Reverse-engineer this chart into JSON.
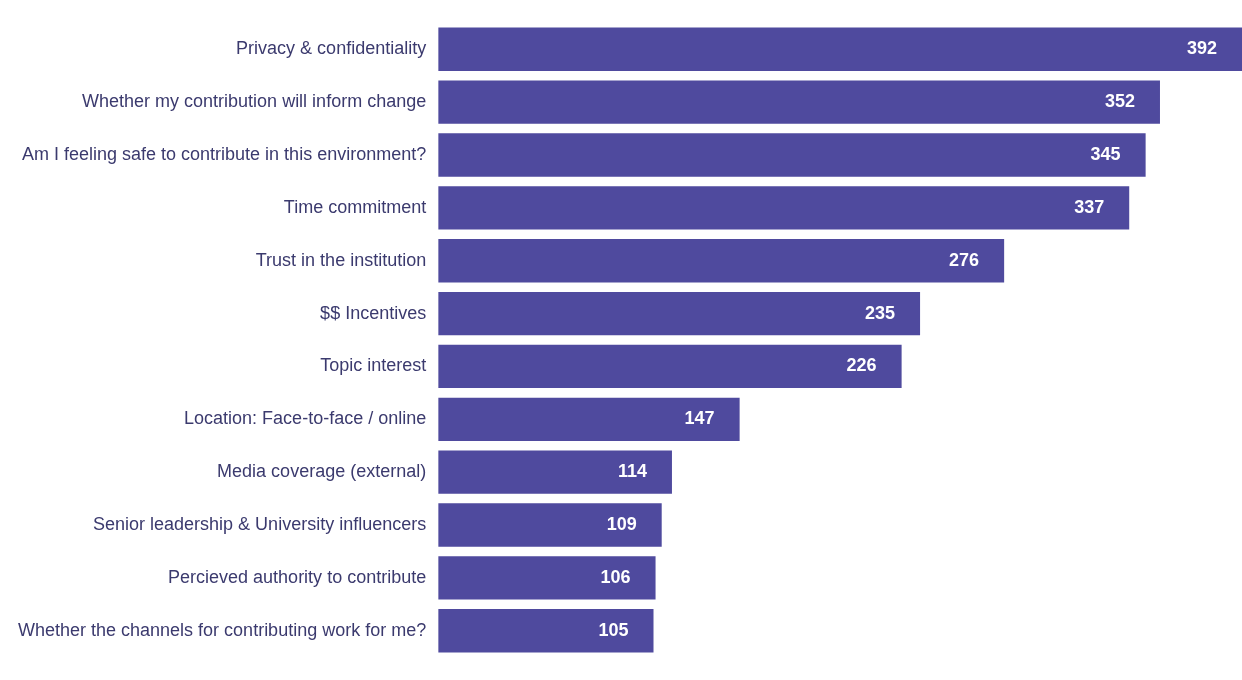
{
  "chart_data": {
    "type": "bar",
    "orientation": "horizontal",
    "categories": [
      "Privacy & confidentiality",
      "Whether my contribution will inform change",
      "Am I feeling safe to contribute in this environment?",
      "Time commitment",
      "Trust in the institution",
      "$$ Incentives",
      "Topic interest",
      "Location: Face-to-face / online",
      "Media coverage (external)",
      "Senior leadership & University influencers",
      "Percieved authority to contribute",
      "Whether the channels for contributing work for me?"
    ],
    "values": [
      392,
      352,
      345,
      337,
      276,
      235,
      226,
      147,
      114,
      109,
      106,
      105
    ],
    "color": "#4f4a9e",
    "data_labels": true,
    "tick_labels": "y"
  }
}
